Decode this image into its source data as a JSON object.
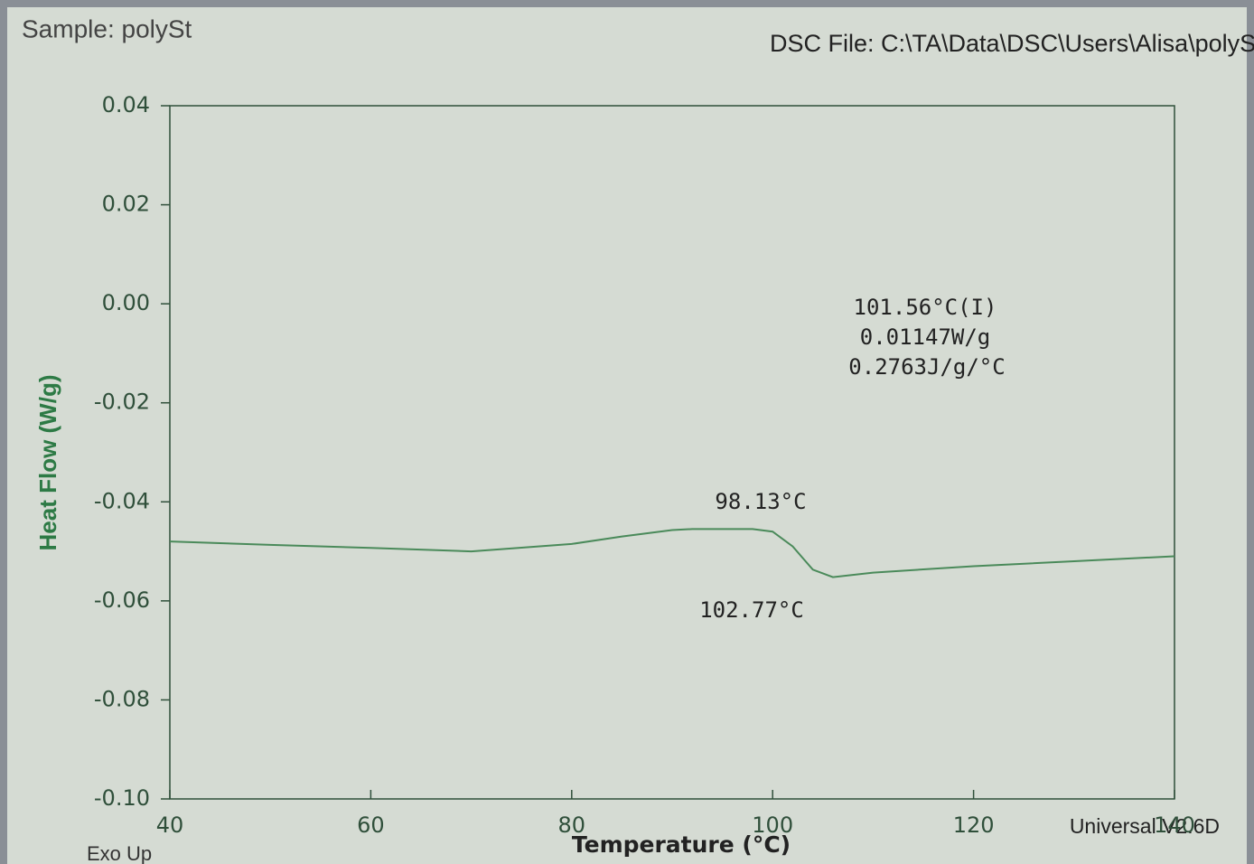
{
  "chart_data": {
    "type": "line",
    "title": "Sample: polySt",
    "subtitle": "DSC File: C:\\TA\\Data\\DSC\\Users\\Alisa\\polyS",
    "x_label": "Temperature (°C)",
    "y_label": "Heat Flow (W/g)",
    "footer_left": "Exo Up",
    "footer_right": "Universal V2.6D",
    "annotations": [
      "98.13°C",
      "102.77°C",
      "101.56°C(I)",
      "0.01147W/g",
      "0.2763J/g/°C"
    ],
    "x": [
      40,
      50,
      60,
      70,
      80,
      85,
      90,
      92,
      95,
      98,
      100,
      102,
      104,
      106,
      110,
      120,
      130,
      140
    ],
    "values": [
      -0.048,
      -0.0487,
      -0.0493,
      -0.05,
      -0.0485,
      -0.047,
      -0.0457,
      -0.0455,
      -0.0455,
      -0.0455,
      -0.046,
      -0.049,
      -0.0537,
      -0.0552,
      -0.0543,
      -0.053,
      -0.052,
      -0.051
    ],
    "color": "#4a8a5a",
    "xlim": [
      40,
      140
    ],
    "xticks": [
      40,
      60,
      80,
      100,
      120,
      140
    ],
    "ylim": [
      -0.1,
      0.04
    ],
    "yticks": [
      0.04,
      0.02,
      {
        "value": 0,
        "label": "0.00"
      },
      -0.02,
      -0.04,
      -0.06,
      -0.08,
      {
        "value": -0.1,
        "label": "-0.10"
      }
    ],
    "grid": false
  }
}
